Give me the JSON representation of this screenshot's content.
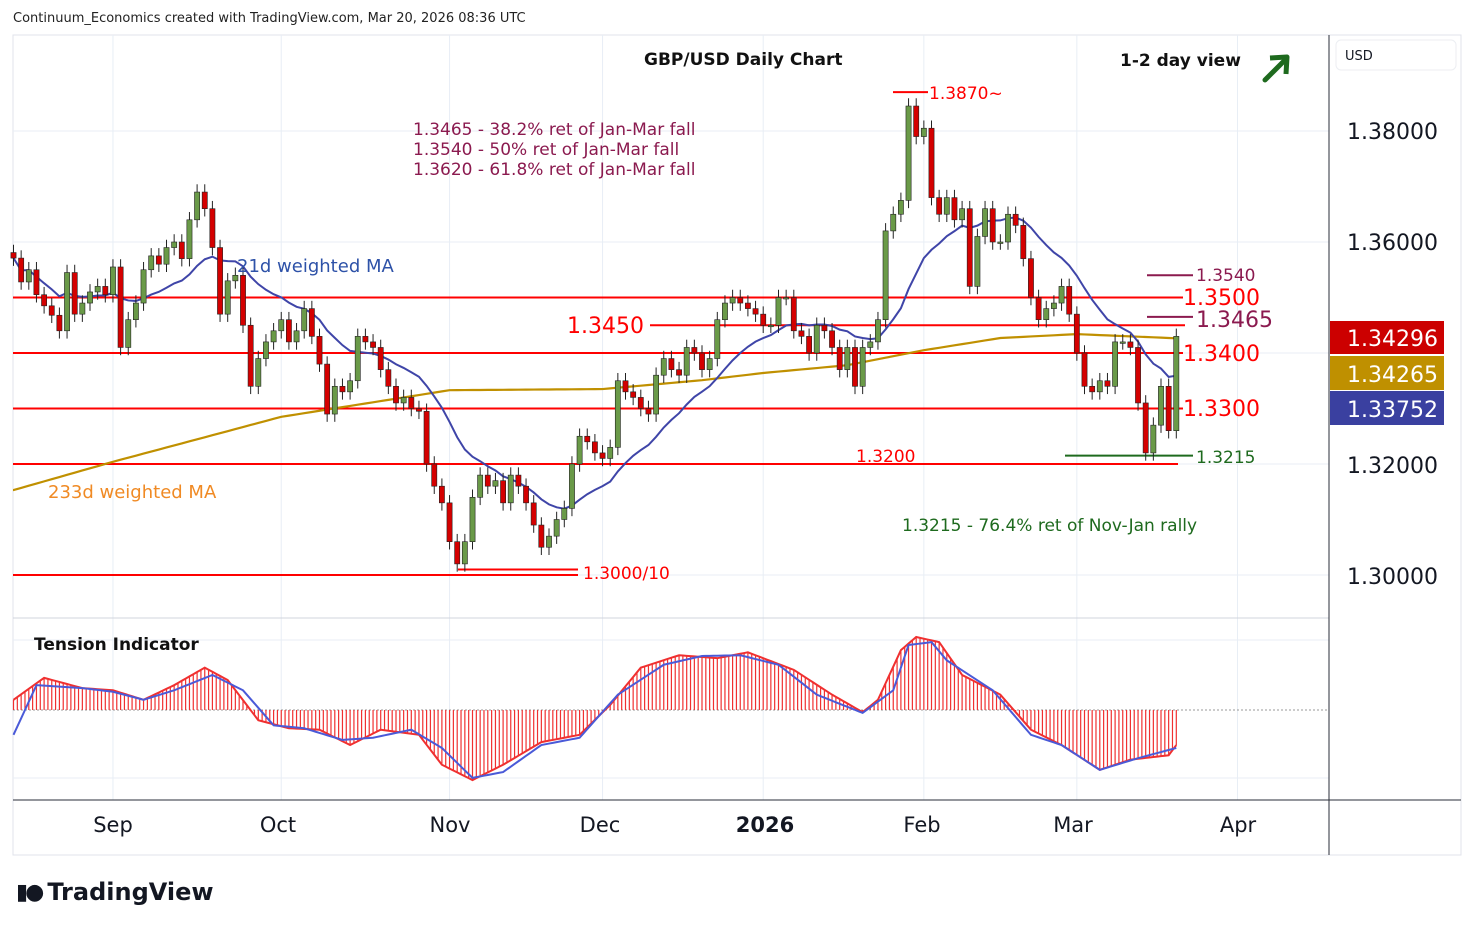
{
  "header": "Continuum_Economics created with TradingView.com, Mar 20, 2026 08:36 UTC",
  "logo": "TradingView",
  "currency": "USD",
  "colors": {
    "up": "#6a9a48",
    "down": "#d40000",
    "ma21": "#3f45a8",
    "ma233": "#c09000",
    "level": "#ff0000",
    "retrace": "#8b1a4f",
    "support": "#1e6a1e"
  },
  "chart_data": {
    "type": "candlestick",
    "title": "GBP/USD Daily Chart",
    "subtitle": "1-2 day view",
    "outlook_icon": "arrow-up-right-icon",
    "ylim": [
      1.288,
      1.392
    ],
    "y_ticks": [
      "1.38000",
      "1.36000",
      "1.32000",
      "1.30000"
    ],
    "y_tick_values": [
      1.38,
      1.36,
      1.32,
      1.3
    ],
    "x_ticks": [
      {
        "label": "Sep",
        "index": 13
      },
      {
        "label": "Oct",
        "index": 35
      },
      {
        "label": "Nov",
        "index": 57
      },
      {
        "label": "Dec",
        "index": 77
      },
      {
        "label": "2026",
        "index": 98
      },
      {
        "label": "Feb",
        "index": 119
      },
      {
        "label": "Mar",
        "index": 139
      },
      {
        "label": "Apr",
        "index": 160
      }
    ],
    "closes": [
      1.3571,
      1.3528,
      1.355,
      1.3505,
      1.3485,
      1.3468,
      1.344,
      1.3545,
      1.347,
      1.349,
      1.351,
      1.352,
      1.3505,
      1.3555,
      1.341,
      1.346,
      1.349,
      1.355,
      1.3575,
      1.356,
      1.359,
      1.36,
      1.357,
      1.364,
      1.369,
      1.366,
      1.359,
      1.347,
      1.353,
      1.354,
      1.345,
      1.334,
      1.339,
      1.342,
      1.344,
      1.346,
      1.342,
      1.344,
      1.348,
      1.343,
      1.338,
      1.329,
      1.334,
      1.333,
      1.335,
      1.343,
      1.342,
      1.341,
      1.337,
      1.334,
      1.331,
      1.332,
      1.33,
      1.3295,
      1.32,
      1.316,
      1.313,
      1.306,
      1.302,
      1.306,
      1.314,
      1.318,
      1.316,
      1.317,
      1.313,
      1.318,
      1.316,
      1.313,
      1.309,
      1.305,
      1.307,
      1.31,
      1.312,
      1.32,
      1.325,
      1.324,
      1.322,
      1.321,
      1.323,
      1.335,
      1.333,
      1.332,
      1.33,
      1.329,
      1.336,
      1.339,
      1.337,
      1.336,
      1.341,
      1.34,
      1.337,
      1.339,
      1.346,
      1.349,
      1.35,
      1.349,
      1.348,
      1.347,
      1.345,
      1.345,
      1.35,
      1.35,
      1.344,
      1.343,
      1.34,
      1.345,
      1.344,
      1.341,
      1.337,
      1.341,
      1.334,
      1.341,
      1.342,
      1.346,
      1.362,
      1.365,
      1.3675,
      1.3845,
      1.379,
      1.3805,
      1.368,
      1.365,
      1.368,
      1.364,
      1.366,
      1.352,
      1.361,
      1.366,
      1.36,
      1.36,
      1.365,
      1.363,
      1.357,
      1.35,
      1.346,
      1.348,
      1.349,
      1.352,
      1.347,
      1.34,
      1.334,
      1.333,
      1.335,
      1.334,
      1.342,
      1.342,
      1.341,
      1.331,
      1.322,
      1.327,
      1.334,
      1.326,
      1.343
    ],
    "ma233_points": [
      [
        0,
        1.3153
      ],
      [
        13,
        1.3204
      ],
      [
        35,
        1.3285
      ],
      [
        57,
        1.3333
      ],
      [
        77,
        1.3335
      ],
      [
        90,
        1.3351
      ],
      [
        98,
        1.3364
      ],
      [
        109,
        1.3378
      ],
      [
        119,
        1.3405
      ],
      [
        129,
        1.3427
      ],
      [
        139,
        1.3434
      ],
      [
        152,
        1.34265
      ]
    ],
    "series_labels": {
      "ma21": "21d weighted MA",
      "ma233": "233d weighted MA"
    },
    "price_badges": [
      {
        "value": "1.34296",
        "color": "#cc0000"
      },
      {
        "value": "1.34265",
        "color": "#bf9000"
      },
      {
        "value": "1.33752",
        "color": "#3a40a0"
      }
    ],
    "levels": {
      "l3870": "1.3870~",
      "l3540": "1.3540",
      "l3500": "1.3500",
      "l3465": "1.3465",
      "l3450": "1.3450",
      "l3400": "1.3400",
      "l3300": "1.3300",
      "l3215": "1.3215",
      "l3200": "1.3200",
      "l3000": "1.3000/10"
    },
    "annotations": {
      "ret1": "1.3465 - 38.2% ret of Jan-Mar fall",
      "ret2": "1.3540 - 50% ret of Jan-Mar fall",
      "ret3": "1.3620 - 61.8% ret of Jan-Mar fall",
      "support": "1.3215 - 76.4% ret of Nov-Jan rally"
    },
    "indicator": {
      "title": "Tension Indicator",
      "fast": [
        [
          0,
          0.14
        ],
        [
          4,
          0.44
        ],
        [
          9,
          0.3
        ],
        [
          13,
          0.27
        ],
        [
          17,
          0.14
        ],
        [
          21,
          0.34
        ],
        [
          25,
          0.58
        ],
        [
          28,
          0.41
        ],
        [
          32,
          -0.14
        ],
        [
          36,
          -0.25
        ],
        [
          40,
          -0.27
        ],
        [
          44,
          -0.48
        ],
        [
          48,
          -0.27
        ],
        [
          53,
          -0.34
        ],
        [
          56,
          -0.75
        ],
        [
          60,
          -0.96
        ],
        [
          64,
          -0.75
        ],
        [
          69,
          -0.44
        ],
        [
          74,
          -0.34
        ],
        [
          78,
          0.07
        ],
        [
          82,
          0.58
        ],
        [
          87,
          0.75
        ],
        [
          92,
          0.71
        ],
        [
          96,
          0.79
        ],
        [
          102,
          0.55
        ],
        [
          107,
          0.21
        ],
        [
          111,
          -0.03
        ],
        [
          113,
          0.14
        ],
        [
          116,
          0.82
        ],
        [
          118,
          1.0
        ],
        [
          121,
          0.93
        ],
        [
          124,
          0.48
        ],
        [
          129,
          0.21
        ],
        [
          133,
          -0.27
        ],
        [
          137,
          -0.48
        ],
        [
          142,
          -0.82
        ],
        [
          146,
          -0.68
        ],
        [
          151,
          -0.62
        ],
        [
          152,
          -0.48
        ]
      ],
      "slow": [
        [
          0,
          -0.34
        ],
        [
          3,
          0.34
        ],
        [
          9,
          0.3
        ],
        [
          13,
          0.25
        ],
        [
          17,
          0.14
        ],
        [
          21,
          0.27
        ],
        [
          26,
          0.48
        ],
        [
          30,
          0.27
        ],
        [
          34,
          -0.21
        ],
        [
          38,
          -0.25
        ],
        [
          43,
          -0.41
        ],
        [
          47,
          -0.38
        ],
        [
          52,
          -0.27
        ],
        [
          56,
          -0.52
        ],
        [
          60,
          -0.93
        ],
        [
          64,
          -0.85
        ],
        [
          69,
          -0.48
        ],
        [
          74,
          -0.38
        ],
        [
          79,
          0.21
        ],
        [
          85,
          0.62
        ],
        [
          90,
          0.74
        ],
        [
          95,
          0.75
        ],
        [
          100,
          0.62
        ],
        [
          105,
          0.21
        ],
        [
          111,
          -0.04
        ],
        [
          115,
          0.27
        ],
        [
          117,
          0.89
        ],
        [
          120,
          0.93
        ],
        [
          122,
          0.68
        ],
        [
          128,
          0.27
        ],
        [
          133,
          -0.34
        ],
        [
          137,
          -0.48
        ],
        [
          142,
          -0.82
        ],
        [
          147,
          -0.66
        ],
        [
          152,
          -0.52
        ]
      ]
    }
  }
}
